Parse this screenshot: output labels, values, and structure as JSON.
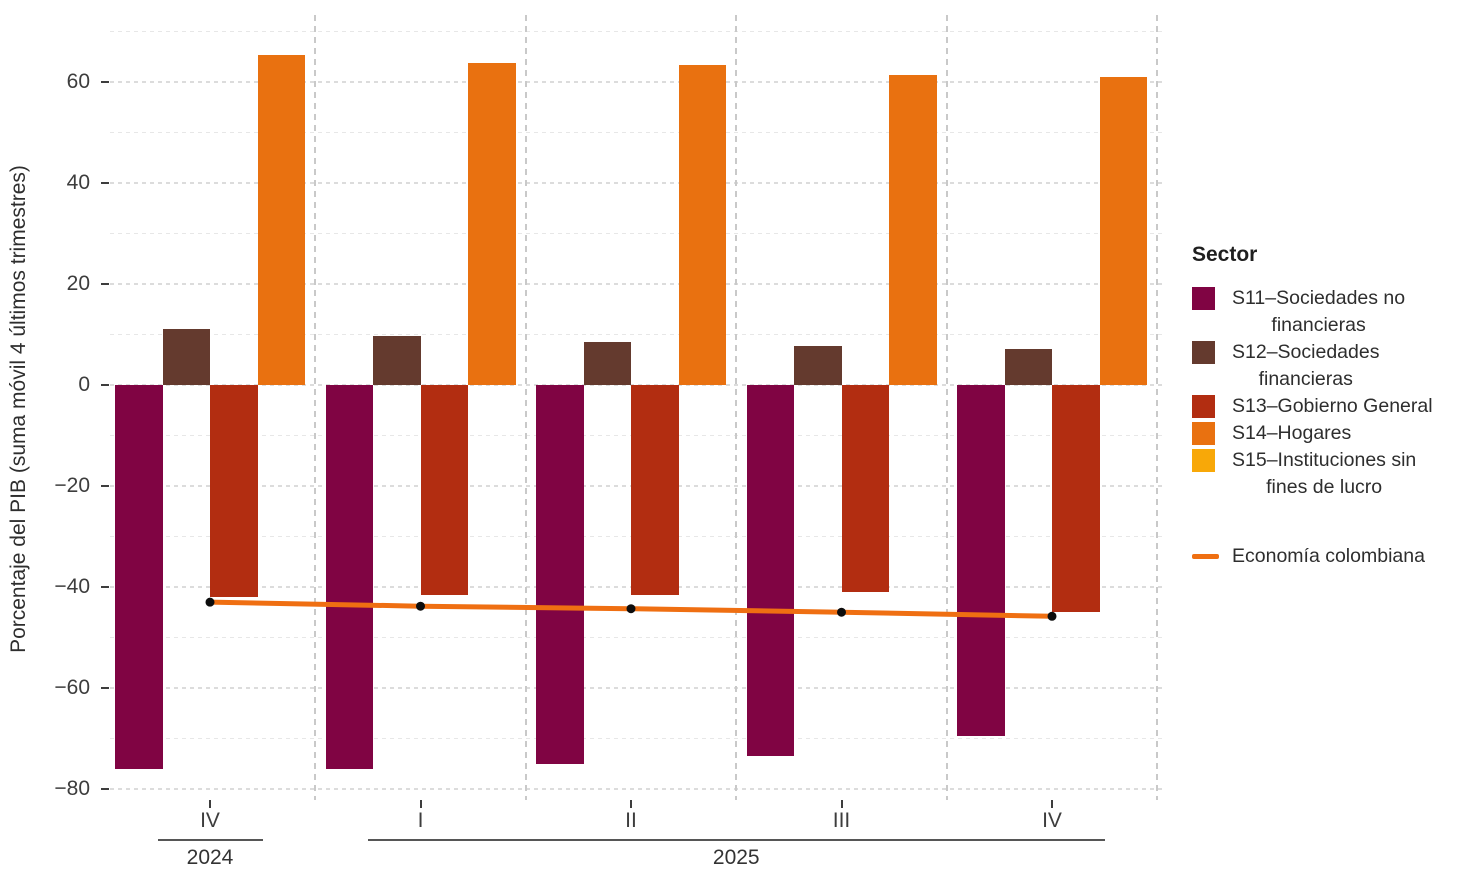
{
  "chart_data": {
    "type": "bar",
    "title": "",
    "categories": [
      "IV",
      "I",
      "II",
      "III",
      "IV"
    ],
    "x_year_groups": [
      {
        "label": "2024",
        "category_indices": [
          0
        ]
      },
      {
        "label": "2025",
        "category_indices": [
          1,
          2,
          3,
          4
        ]
      }
    ],
    "xlabel": "",
    "ylabel": "Porcentaje del PIB (suma móvil 4 últimos trimestres)",
    "yticks": [
      60,
      40,
      20,
      0,
      -20,
      -40,
      -60,
      -80
    ],
    "ylim": [
      -82,
      70.5
    ],
    "grid": "dashed horizontal major every 20 and minor every 10; dashed vertical separators between quarters",
    "legend_position": "right",
    "legend_title": "Sector",
    "series": [
      {
        "id": "S11",
        "name": "S11–Sociedades no financieras",
        "legend_lines": [
          "S11–Sociedades no",
          "financieras"
        ],
        "color": "#800443",
        "values": [
          -76,
          -76,
          -75,
          -73.5,
          -69.5
        ]
      },
      {
        "id": "S12",
        "name": "S12–Sociedades financieras",
        "legend_lines": [
          "S12–Sociedades",
          "financieras"
        ],
        "color": "#643A2E",
        "values": [
          11,
          9.7,
          8.5,
          7.7,
          7.2
        ]
      },
      {
        "id": "S13",
        "name": "S13–Gobierno General",
        "legend_lines": [
          "S13–Gobierno General"
        ],
        "color": "#B22D11",
        "values": [
          -42,
          -41.5,
          -41.5,
          -41,
          -45
        ]
      },
      {
        "id": "S14",
        "name": "S14–Hogares",
        "legend_lines": [
          "S14–Hogares"
        ],
        "color": "#E97110",
        "values": [
          65.4,
          63.7,
          63.3,
          61.3,
          61
        ]
      },
      {
        "id": "S15",
        "name": "S15–Instituciones sin fines de lucro",
        "legend_lines": [
          "S15–Instituciones sin",
          "fines de lucro"
        ],
        "color": "#F8A808",
        "values": [
          0,
          0,
          0,
          0,
          0
        ]
      }
    ],
    "line_series": {
      "name": "Economía colombiana",
      "color": "#EF6F12",
      "dot_color": "#0D0D0D",
      "values": [
        -43,
        -43.8,
        -44.3,
        -45,
        -45.8
      ]
    }
  }
}
